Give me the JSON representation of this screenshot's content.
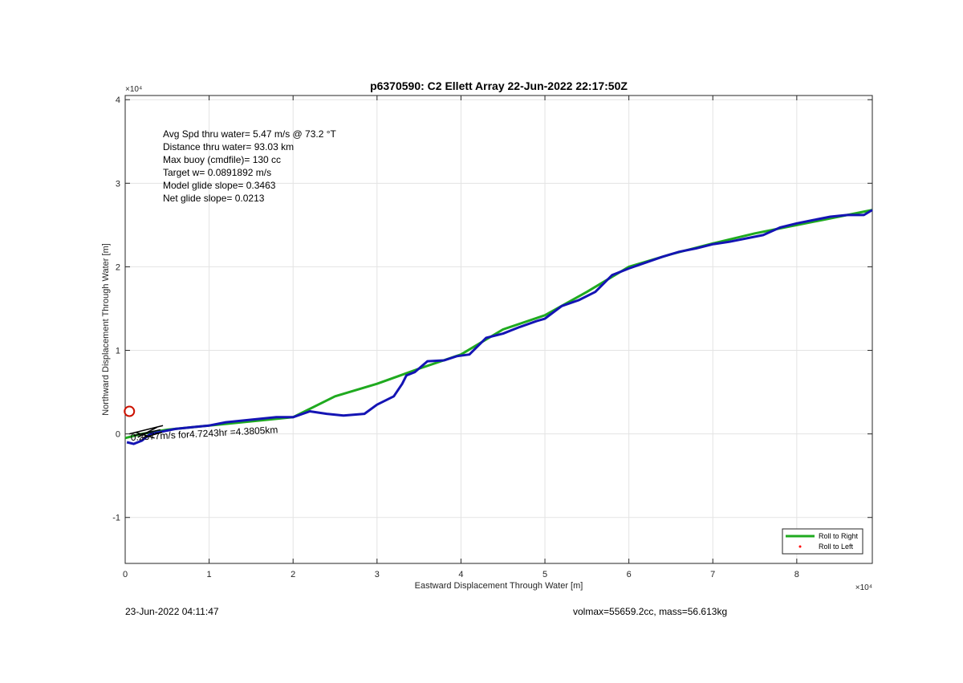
{
  "chart_data": {
    "type": "line",
    "title": "p6370590: C2 Ellett Array 22-Jun-2022 22:17:50Z",
    "xlabel": "Eastward Displacement Through Water [m]",
    "ylabel": "Northward Displacement Through Water [m]",
    "x_exponent_label": "×10⁴",
    "y_exponent_label": "×10⁴",
    "xlim": [
      0,
      8.9
    ],
    "ylim": [
      -1.55,
      4.05
    ],
    "xticks": [
      0,
      1,
      2,
      3,
      4,
      5,
      6,
      7,
      8
    ],
    "yticks": [
      -1,
      0,
      1,
      2,
      3,
      4
    ],
    "xtick_labels": [
      "0",
      "1",
      "2",
      "3",
      "4",
      "5",
      "6",
      "7",
      "8"
    ],
    "ytick_labels": [
      "-1",
      "0",
      "1",
      "2",
      "3",
      "4"
    ],
    "grid": true,
    "legend_placement": "bottom-right",
    "annotations": [
      "Avg Spd thru water=  5.47 m/s @  73.2 °T",
      "Distance thru water= 93.03 km",
      "Max buoy (cmdfile)= 130 cc",
      "Target w= 0.0891892 m/s",
      "Model glide slope= 0.3463",
      "Net glide slope= 0.0213"
    ],
    "overlay_text": "0.2577m/s for4.7243hr =4.3805km",
    "marker": {
      "shape": "circle",
      "color": "#cc1100",
      "x": 0.05,
      "y": 0.27
    },
    "series": [
      {
        "name": "Roll to Right",
        "color": "#1faa1f",
        "x": [
          0.0,
          0.2,
          0.5,
          1.0,
          1.5,
          2.0,
          2.5,
          3.0,
          3.5,
          4.0,
          4.5,
          5.0,
          5.5,
          6.0,
          6.5,
          7.0,
          7.5,
          8.0,
          8.5,
          8.9
        ],
        "y": [
          -0.05,
          0.0,
          0.05,
          0.1,
          0.15,
          0.2,
          0.45,
          0.6,
          0.78,
          0.95,
          1.25,
          1.42,
          1.7,
          2.0,
          2.15,
          2.28,
          2.4,
          2.5,
          2.6,
          2.68
        ]
      },
      {
        "name": "Roll to Left",
        "color": "#ff0000",
        "x": [],
        "y": []
      },
      {
        "name": "",
        "color": "#1414b4",
        "x": [
          0.02,
          0.1,
          0.2,
          0.3,
          0.45,
          0.6,
          0.8,
          1.0,
          1.2,
          1.4,
          1.6,
          1.8,
          2.0,
          2.2,
          2.4,
          2.6,
          2.85,
          3.0,
          3.2,
          3.3,
          3.35,
          3.45,
          3.6,
          3.8,
          3.95,
          4.1,
          4.3,
          4.5,
          4.7,
          4.9,
          5.0,
          5.2,
          5.4,
          5.6,
          5.8,
          6.0,
          6.2,
          6.4,
          6.6,
          6.8,
          7.0,
          7.2,
          7.4,
          7.6,
          7.8,
          8.0,
          8.2,
          8.4,
          8.6,
          8.8,
          8.9
        ],
        "y": [
          -0.1,
          -0.12,
          -0.08,
          0.0,
          0.03,
          0.06,
          0.08,
          0.1,
          0.14,
          0.16,
          0.18,
          0.2,
          0.2,
          0.27,
          0.24,
          0.22,
          0.24,
          0.35,
          0.45,
          0.6,
          0.7,
          0.74,
          0.87,
          0.88,
          0.93,
          0.95,
          1.15,
          1.2,
          1.28,
          1.35,
          1.38,
          1.53,
          1.6,
          1.7,
          1.9,
          1.98,
          2.05,
          2.12,
          2.18,
          2.22,
          2.27,
          2.3,
          2.34,
          2.38,
          2.47,
          2.52,
          2.56,
          2.6,
          2.62,
          2.62,
          2.68
        ]
      }
    ]
  },
  "footer": {
    "timestamp": "23-Jun-2022 04:11:47",
    "volume_mass": "volmax=55659.2cc, mass=56.613kg"
  }
}
